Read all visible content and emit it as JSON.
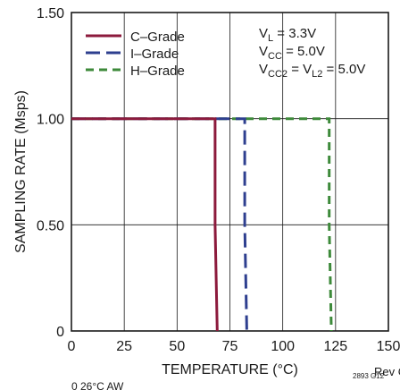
{
  "chart_data": {
    "type": "line",
    "title": "",
    "xlabel": "TEMPERATURE (°C)",
    "ylabel": "SAMPLING RATE (Msps)",
    "xlim": [
      0,
      150
    ],
    "ylim": [
      0,
      1.5
    ],
    "x_ticks": [
      "0",
      "25",
      "50",
      "75",
      "100",
      "125",
      "150"
    ],
    "y_ticks": [
      "0",
      "0.50",
      "1.00",
      "1.50"
    ],
    "grid": true,
    "legend_position": "top-left",
    "series": [
      {
        "name": "C–Grade",
        "color": "#8c1a3c",
        "dash": "solid",
        "x": [
          0,
          68,
          68,
          69
        ],
        "y": [
          1.0,
          1.0,
          0.5,
          0
        ]
      },
      {
        "name": "I–Grade",
        "color": "#2e3f8f",
        "dash": "long-dash",
        "x": [
          0,
          82,
          82,
          83
        ],
        "y": [
          1.0,
          1.0,
          0.5,
          0
        ]
      },
      {
        "name": "H–Grade",
        "color": "#3d8a3a",
        "dash": "dash",
        "x": [
          0,
          122,
          122,
          123
        ],
        "y": [
          1.0,
          1.0,
          0.5,
          0
        ]
      }
    ],
    "conditions": {
      "vl": {
        "main": "V",
        "sub": "L",
        "tail": " = 3.3V"
      },
      "vcc": {
        "main": "V",
        "sub": "CC",
        "tail": " = 5.0V"
      },
      "vcc2_a": {
        "main": "V",
        "sub": "CC2",
        "tail": " = V"
      },
      "vcc2_b": {
        "sub": "L2",
        "tail": " = 5.0V"
      }
    },
    "figure_id": "2893 G12",
    "footer_right": "Rev C",
    "cutoff_text": "0      26°C AW"
  }
}
